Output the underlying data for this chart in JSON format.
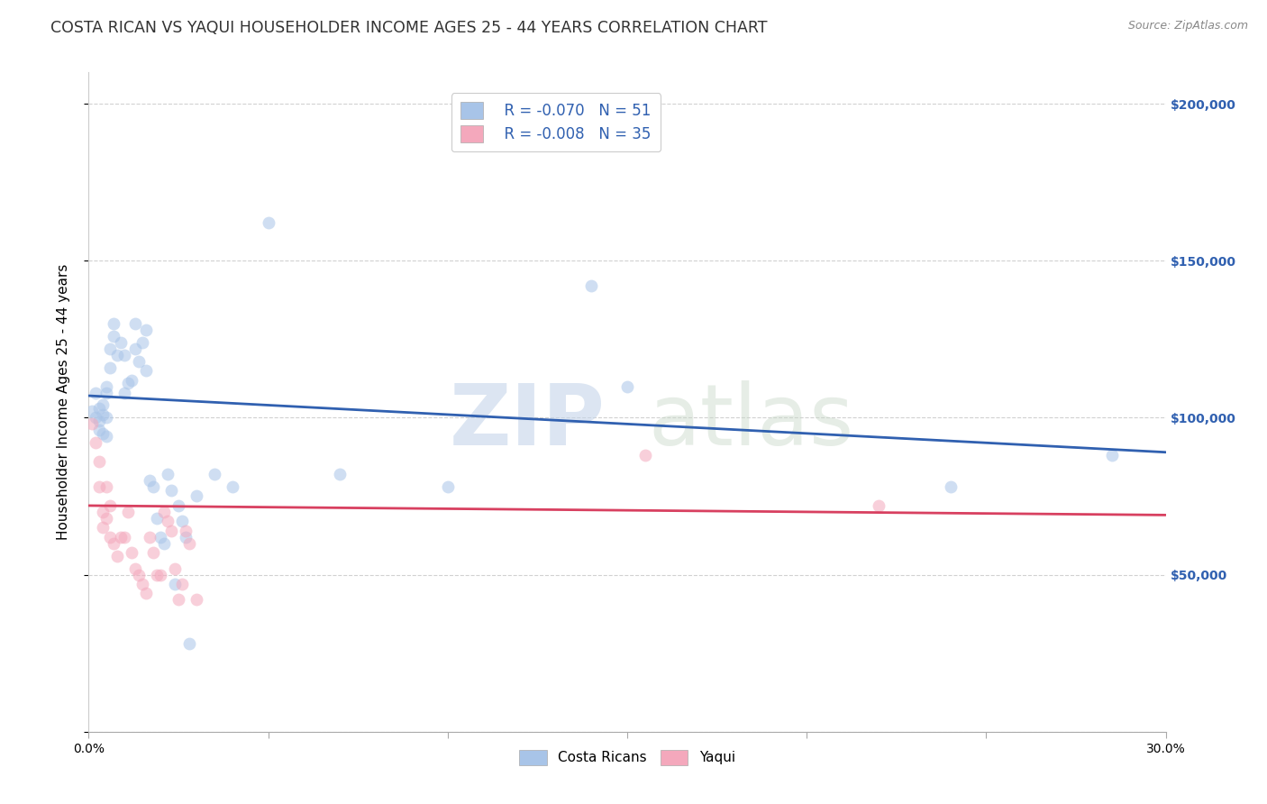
{
  "title": "COSTA RICAN VS YAQUI HOUSEHOLDER INCOME AGES 25 - 44 YEARS CORRELATION CHART",
  "source": "Source: ZipAtlas.com",
  "ylabel": "Householder Income Ages 25 - 44 years",
  "xlabel": "",
  "xlim": [
    0.0,
    0.3
  ],
  "ylim": [
    0,
    210000
  ],
  "yticks": [
    0,
    50000,
    100000,
    150000,
    200000
  ],
  "ytick_labels": [
    "",
    "$50,000",
    "$100,000",
    "$150,000",
    "$200,000"
  ],
  "xticks": [
    0.0,
    0.05,
    0.1,
    0.15,
    0.2,
    0.25,
    0.3
  ],
  "xtick_labels": [
    "0.0%",
    "",
    "",
    "",
    "",
    "",
    "30.0%"
  ],
  "blue_label": "Costa Ricans",
  "pink_label": "Yaqui",
  "legend_r_blue": "R = -0.070",
  "legend_n_blue": "N = 51",
  "legend_r_pink": "R = -0.008",
  "legend_n_pink": "N = 35",
  "blue_color": "#a8c4e8",
  "pink_color": "#f4a8bc",
  "blue_line_color": "#3060b0",
  "pink_line_color": "#d84060",
  "blue_x": [
    0.001,
    0.002,
    0.002,
    0.003,
    0.003,
    0.003,
    0.004,
    0.004,
    0.004,
    0.005,
    0.005,
    0.005,
    0.005,
    0.006,
    0.006,
    0.007,
    0.007,
    0.008,
    0.009,
    0.01,
    0.01,
    0.011,
    0.012,
    0.013,
    0.013,
    0.014,
    0.015,
    0.016,
    0.016,
    0.017,
    0.018,
    0.019,
    0.02,
    0.021,
    0.022,
    0.023,
    0.024,
    0.025,
    0.026,
    0.027,
    0.028,
    0.03,
    0.035,
    0.04,
    0.05,
    0.07,
    0.1,
    0.14,
    0.15,
    0.24,
    0.285
  ],
  "blue_y": [
    102000,
    108000,
    100000,
    103000,
    99000,
    96000,
    104000,
    101000,
    95000,
    108000,
    110000,
    100000,
    94000,
    122000,
    116000,
    126000,
    130000,
    120000,
    124000,
    120000,
    108000,
    111000,
    112000,
    122000,
    130000,
    118000,
    124000,
    128000,
    115000,
    80000,
    78000,
    68000,
    62000,
    60000,
    82000,
    77000,
    47000,
    72000,
    67000,
    62000,
    28000,
    75000,
    82000,
    78000,
    162000,
    82000,
    78000,
    142000,
    110000,
    78000,
    88000
  ],
  "pink_x": [
    0.001,
    0.002,
    0.003,
    0.003,
    0.004,
    0.004,
    0.005,
    0.005,
    0.006,
    0.006,
    0.007,
    0.008,
    0.009,
    0.01,
    0.011,
    0.012,
    0.013,
    0.014,
    0.015,
    0.016,
    0.017,
    0.018,
    0.019,
    0.02,
    0.021,
    0.022,
    0.023,
    0.024,
    0.025,
    0.026,
    0.027,
    0.028,
    0.03,
    0.155,
    0.22
  ],
  "pink_y": [
    98000,
    92000,
    86000,
    78000,
    70000,
    65000,
    78000,
    68000,
    72000,
    62000,
    60000,
    56000,
    62000,
    62000,
    70000,
    57000,
    52000,
    50000,
    47000,
    44000,
    62000,
    57000,
    50000,
    50000,
    70000,
    67000,
    64000,
    52000,
    42000,
    47000,
    64000,
    60000,
    42000,
    88000,
    72000
  ],
  "blue_trend_x": [
    0.0,
    0.3
  ],
  "blue_trend_y": [
    107000,
    89000
  ],
  "pink_trend_x": [
    0.0,
    0.3
  ],
  "pink_trend_y": [
    72000,
    69000
  ],
  "watermark_zip": "ZIP",
  "watermark_atlas": "atlas",
  "background_color": "#ffffff",
  "grid_color": "#cccccc",
  "title_fontsize": 12.5,
  "axis_fontsize": 11,
  "tick_fontsize": 10,
  "marker_size": 100,
  "marker_alpha": 0.55,
  "legend_color": "#3060b0"
}
